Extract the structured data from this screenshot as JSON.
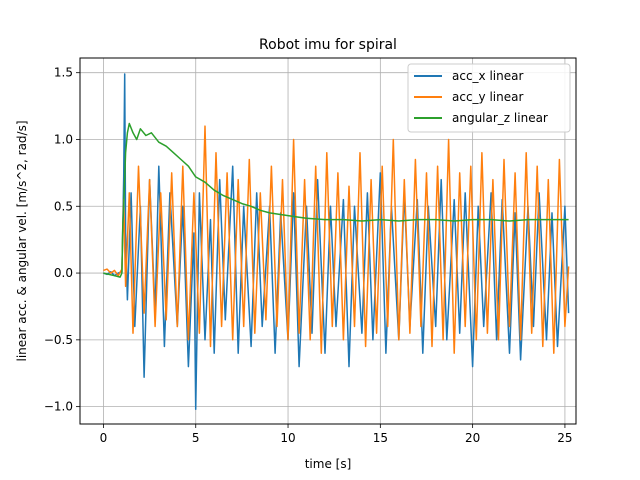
{
  "chart_data": {
    "type": "line",
    "title": "Robot imu for spiral",
    "xlabel": "time [s]",
    "ylabel": "linear acc. & angular vel. [m/s^2, rad/s]",
    "xlim": [
      -1.27,
      25.6
    ],
    "ylim": [
      -1.13,
      1.61
    ],
    "xticks": [
      0,
      5,
      10,
      15,
      20,
      25
    ],
    "yticks": [
      -1.0,
      -0.5,
      0.0,
      0.5,
      1.0,
      1.5
    ],
    "xtick_labels": [
      "0",
      "5",
      "10",
      "15",
      "20",
      "25"
    ],
    "ytick_labels": [
      "−1.0",
      "−0.5",
      "0.0",
      "0.5",
      "1.0",
      "1.5"
    ],
    "grid": true,
    "legend_position": "top-right",
    "series": [
      {
        "name": "acc_x linear",
        "color": "#1f77b4",
        "x": [
          0,
          0.2,
          0.4,
          0.6,
          0.8,
          1.0,
          1.1,
          1.15,
          1.2,
          1.3,
          1.5,
          1.7,
          2.0,
          2.2,
          2.5,
          2.8,
          3.0,
          3.3,
          3.6,
          4.0,
          4.3,
          4.6,
          4.9,
          5.0,
          5.2,
          5.5,
          5.8,
          6.0,
          6.3,
          6.6,
          7.0,
          7.3,
          7.6,
          8.0,
          8.3,
          8.6,
          9.0,
          9.3,
          9.6,
          10.0,
          10.3,
          10.6,
          11.0,
          11.3,
          11.6,
          12.0,
          12.3,
          12.6,
          13.0,
          13.3,
          13.6,
          14.0,
          14.3,
          14.6,
          15.0,
          15.3,
          15.6,
          16.0,
          16.3,
          16.6,
          17.0,
          17.3,
          17.6,
          18.0,
          18.3,
          18.6,
          19.0,
          19.3,
          19.6,
          20.0,
          20.3,
          20.6,
          21.0,
          21.3,
          21.6,
          22.0,
          22.3,
          22.6,
          23.0,
          23.3,
          23.6,
          24.0,
          24.3,
          24.6,
          25.0,
          25.2
        ],
        "values": [
          0.0,
          -0.01,
          0.01,
          -0.02,
          0.0,
          0.01,
          0.72,
          1.49,
          0.3,
          -0.2,
          0.6,
          -0.4,
          0.5,
          -0.78,
          0.7,
          -0.3,
          0.8,
          -0.55,
          0.6,
          -0.4,
          0.5,
          -0.7,
          0.3,
          -1.02,
          0.6,
          -0.5,
          0.4,
          -0.6,
          0.7,
          -0.35,
          0.8,
          -0.6,
          0.5,
          -0.55,
          0.6,
          -0.4,
          0.5,
          -0.6,
          0.45,
          -0.5,
          0.6,
          -0.7,
          0.5,
          -0.45,
          0.7,
          -0.6,
          0.5,
          -0.4,
          0.55,
          -0.7,
          0.5,
          -0.45,
          0.6,
          -0.5,
          0.75,
          -0.6,
          0.5,
          -0.5,
          0.6,
          -0.4,
          0.55,
          -0.6,
          0.5,
          -0.4,
          0.7,
          -0.5,
          0.55,
          -0.45,
          0.6,
          -0.7,
          0.5,
          -0.4,
          0.6,
          -0.5,
          0.55,
          -0.6,
          0.45,
          -0.65,
          0.5,
          -0.4,
          0.6,
          -0.5,
          0.45,
          -0.55,
          0.5,
          -0.3
        ]
      },
      {
        "name": "acc_y linear",
        "color": "#ff7f0e",
        "x": [
          0,
          0.2,
          0.4,
          0.6,
          0.8,
          1.0,
          1.1,
          1.2,
          1.4,
          1.6,
          1.9,
          2.2,
          2.5,
          2.8,
          3.1,
          3.4,
          3.7,
          4.0,
          4.3,
          4.6,
          4.9,
          5.2,
          5.5,
          5.8,
          6.1,
          6.4,
          6.7,
          7.0,
          7.3,
          7.6,
          7.9,
          8.2,
          8.5,
          8.8,
          9.1,
          9.4,
          9.7,
          10.0,
          10.3,
          10.6,
          10.9,
          11.2,
          11.5,
          11.8,
          12.1,
          12.4,
          12.7,
          13.0,
          13.3,
          13.6,
          13.9,
          14.2,
          14.5,
          14.8,
          15.1,
          15.4,
          15.7,
          16.0,
          16.3,
          16.6,
          16.9,
          17.2,
          17.5,
          17.8,
          18.1,
          18.4,
          18.7,
          19.0,
          19.3,
          19.6,
          19.9,
          20.2,
          20.5,
          20.8,
          21.1,
          21.4,
          21.7,
          22.0,
          22.3,
          22.6,
          22.9,
          23.2,
          23.5,
          23.8,
          24.1,
          24.4,
          24.7,
          25.0,
          25.2
        ],
        "values": [
          0.02,
          0.03,
          0.0,
          0.02,
          -0.02,
          0.03,
          0.55,
          -0.1,
          0.6,
          -0.45,
          0.8,
          -0.3,
          0.7,
          -0.4,
          0.6,
          -0.35,
          0.75,
          -0.4,
          0.8,
          -0.5,
          0.6,
          -0.45,
          1.1,
          -0.55,
          0.9,
          -0.4,
          0.75,
          -0.5,
          0.7,
          -0.4,
          0.85,
          -0.45,
          0.6,
          -0.35,
          0.8,
          -0.4,
          0.7,
          -0.5,
          1.0,
          -0.45,
          0.7,
          -0.5,
          0.8,
          -0.6,
          0.9,
          -0.4,
          0.75,
          -0.5,
          0.65,
          -0.4,
          0.9,
          -0.55,
          0.7,
          -0.45,
          0.8,
          -0.4,
          1.0,
          -0.5,
          0.7,
          -0.45,
          0.85,
          -0.4,
          0.75,
          -0.55,
          0.8,
          -0.5,
          1.0,
          -0.6,
          0.75,
          -0.4,
          0.8,
          -0.5,
          0.9,
          -0.45,
          0.7,
          -0.5,
          0.85,
          -0.4,
          0.75,
          -0.5,
          0.9,
          -0.45,
          0.8,
          -0.55,
          0.7,
          -0.6,
          0.85,
          -0.4,
          0.05
        ]
      },
      {
        "name": "angular_z linear",
        "color": "#2ca02c",
        "x": [
          0,
          0.3,
          0.6,
          0.9,
          1.0,
          1.05,
          1.1,
          1.2,
          1.3,
          1.4,
          1.6,
          1.8,
          2.0,
          2.3,
          2.6,
          3.0,
          3.4,
          3.8,
          4.2,
          4.6,
          5.0,
          5.5,
          6.0,
          6.5,
          7.0,
          7.5,
          8.0,
          8.5,
          9.0,
          9.5,
          10.0,
          10.5,
          11.0,
          12.0,
          13.0,
          14.0,
          15.0,
          16.0,
          17.0,
          18.0,
          19.0,
          20.0,
          21.0,
          22.0,
          23.0,
          24.0,
          25.0,
          25.2
        ],
        "values": [
          0.0,
          -0.01,
          -0.02,
          -0.03,
          0.0,
          0.35,
          0.5,
          0.9,
          1.05,
          1.12,
          1.05,
          1.0,
          1.08,
          1.03,
          1.05,
          0.98,
          0.95,
          0.9,
          0.85,
          0.8,
          0.72,
          0.68,
          0.62,
          0.58,
          0.55,
          0.52,
          0.5,
          0.47,
          0.45,
          0.44,
          0.43,
          0.42,
          0.41,
          0.4,
          0.4,
          0.39,
          0.4,
          0.39,
          0.4,
          0.4,
          0.39,
          0.4,
          0.4,
          0.39,
          0.4,
          0.4,
          0.4,
          0.4
        ]
      }
    ]
  }
}
